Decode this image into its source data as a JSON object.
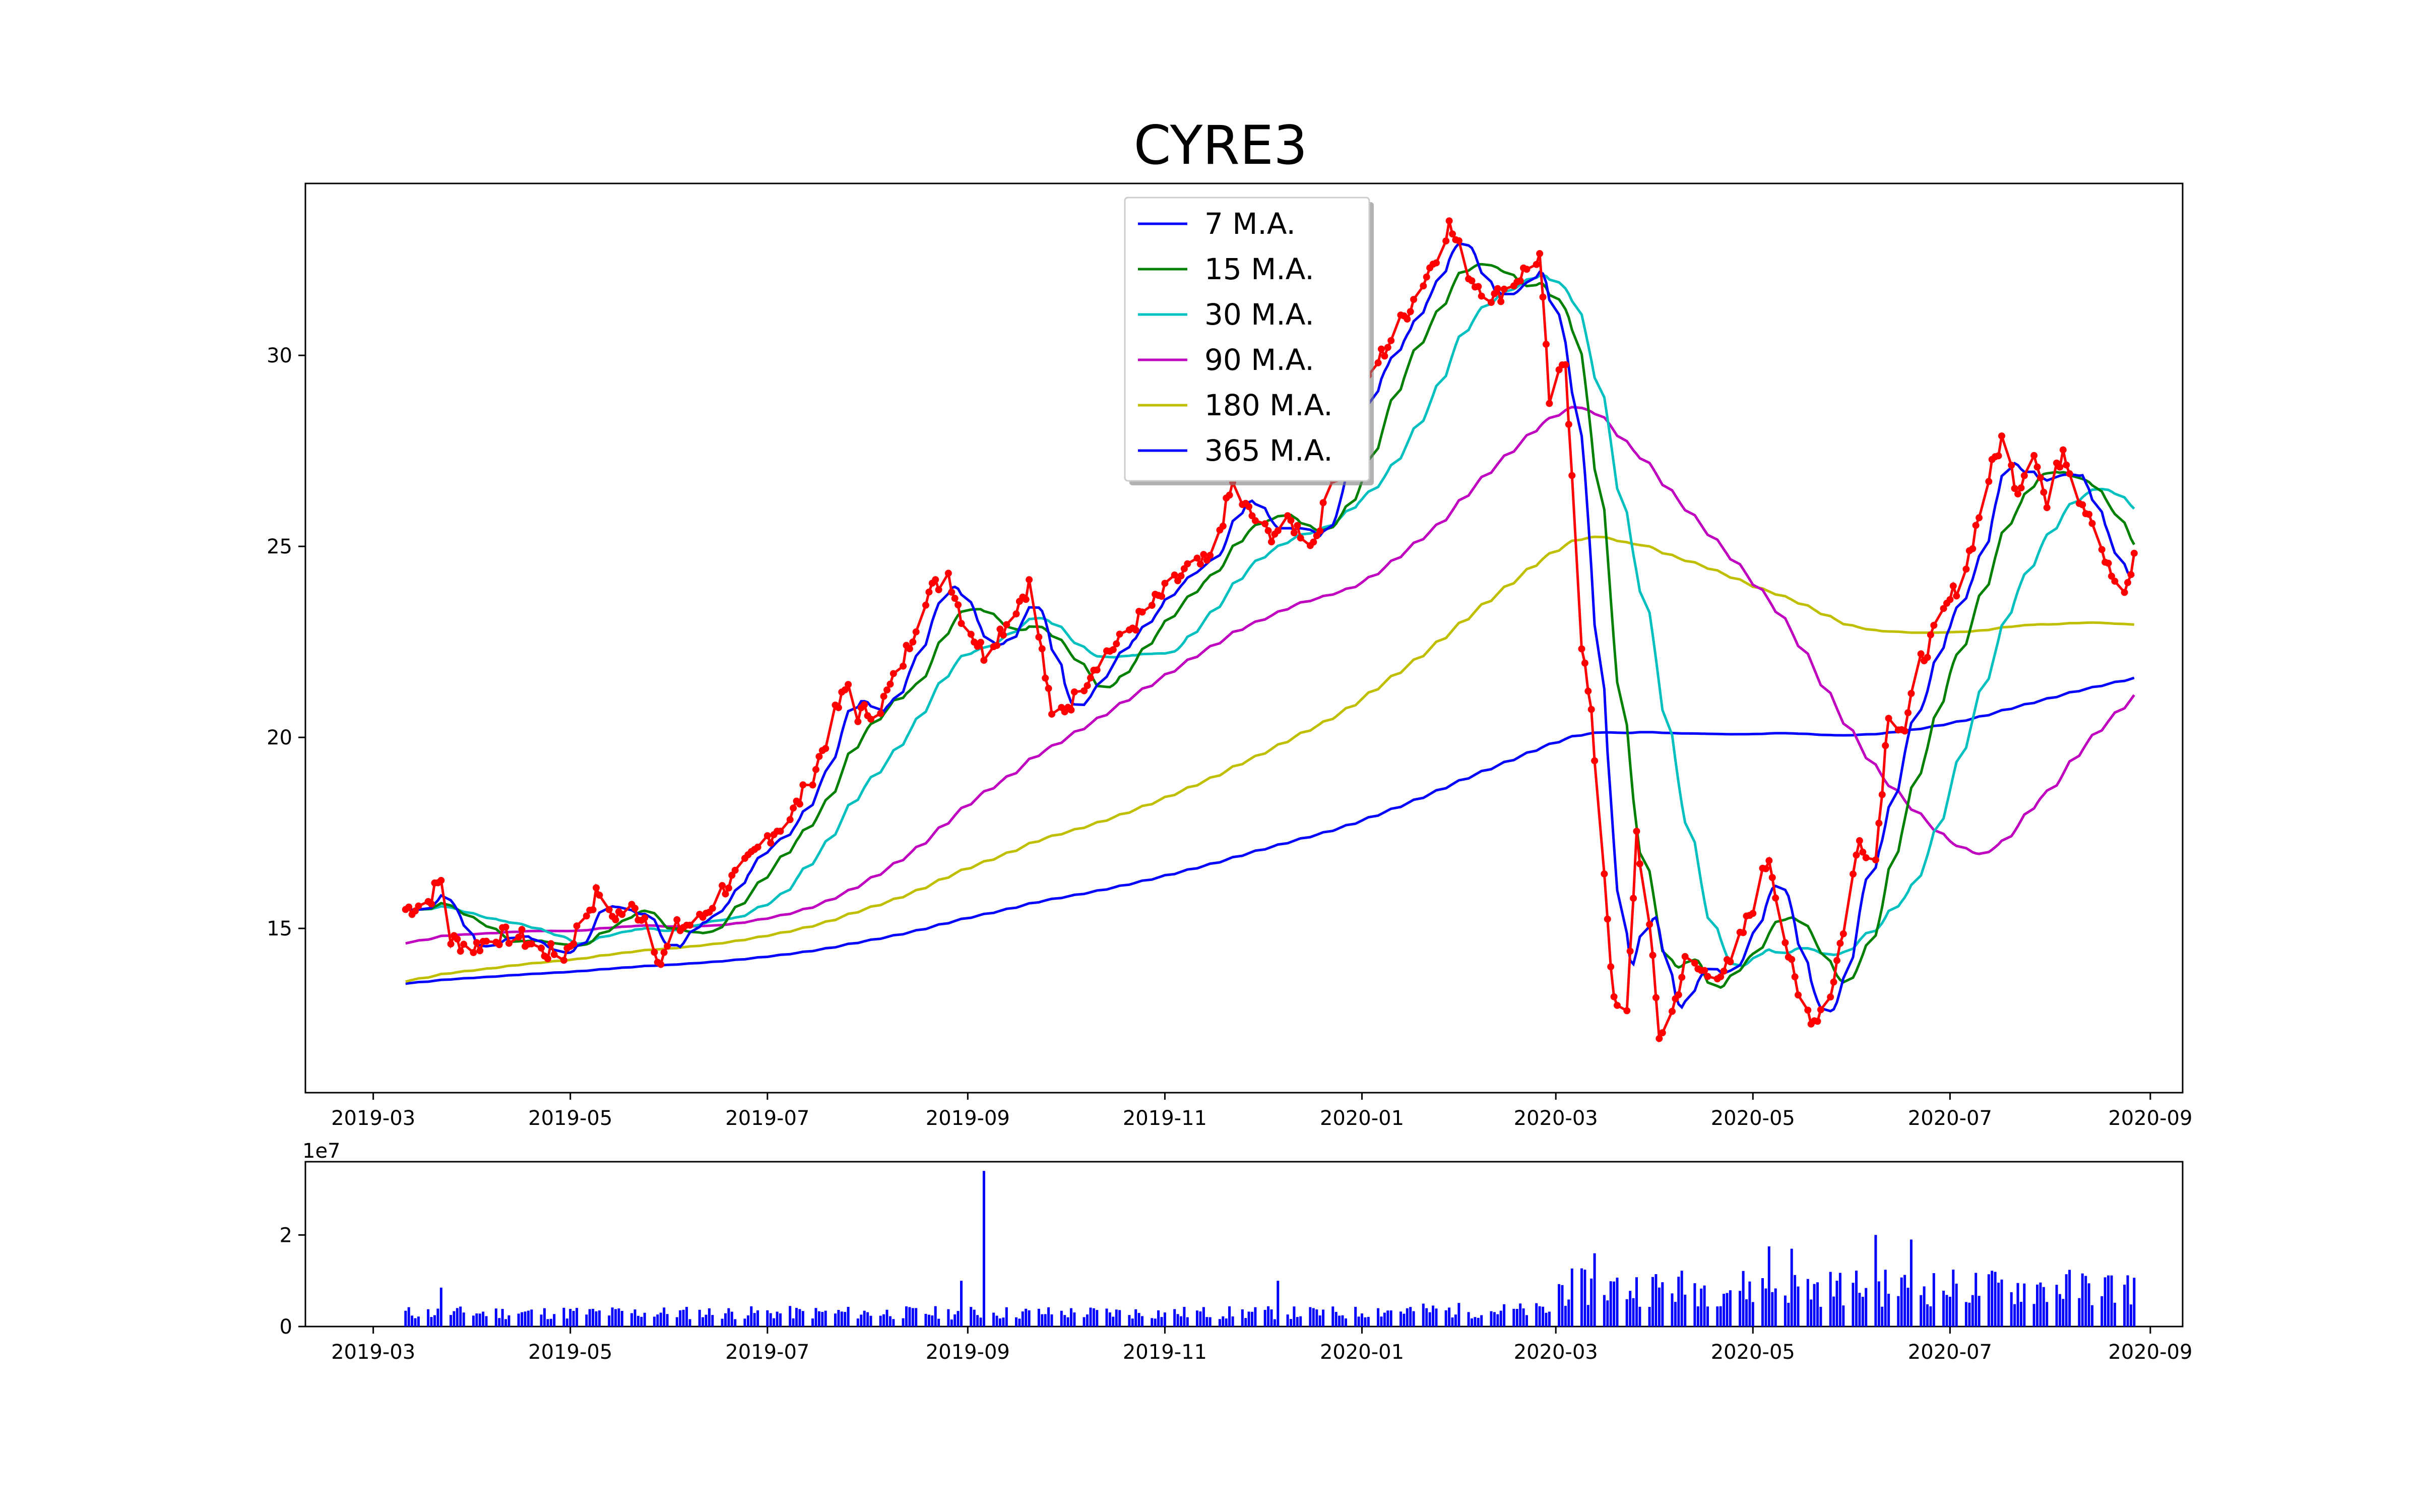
{
  "chart_data": [
    {
      "type": "line",
      "title": "CYRE3",
      "xlabel": "",
      "ylabel": "",
      "x_ticks": [
        "2019-03",
        "2019-05",
        "2019-07",
        "2019-09",
        "2019-11",
        "2020-01",
        "2020-03",
        "2020-05",
        "2020-07",
        "2020-09"
      ],
      "y_ticks": [
        15,
        20,
        25,
        30
      ],
      "ylim": [
        10.7,
        34.5
      ],
      "xlim": [
        "2019-02-08",
        "2020-09-11"
      ],
      "grid": false,
      "legend_position": "top-center",
      "price_color": "#ff0000",
      "anchor_date": "2019-03-11",
      "price_series_approx": [
        [
          "2019-03-11",
          15.5
        ],
        [
          "2019-03-18",
          15.7
        ],
        [
          "2019-03-22",
          16.3
        ],
        [
          "2019-03-25",
          14.7
        ],
        [
          "2019-04-01",
          14.5
        ],
        [
          "2019-04-08",
          14.8
        ],
        [
          "2019-04-15",
          14.8
        ],
        [
          "2019-04-22",
          14.4
        ],
        [
          "2019-04-29",
          14.3
        ],
        [
          "2019-05-06",
          15.4
        ],
        [
          "2019-05-10",
          16.0
        ],
        [
          "2019-05-13",
          15.3
        ],
        [
          "2019-05-20",
          15.5
        ],
        [
          "2019-05-24",
          15.3
        ],
        [
          "2019-05-29",
          14.1
        ],
        [
          "2019-06-03",
          15.0
        ],
        [
          "2019-06-10",
          15.2
        ],
        [
          "2019-06-17",
          16.0
        ],
        [
          "2019-06-24",
          16.6
        ],
        [
          "2019-07-01",
          17.4
        ],
        [
          "2019-07-08",
          17.9
        ],
        [
          "2019-07-15",
          19.0
        ],
        [
          "2019-07-22",
          20.6
        ],
        [
          "2019-07-26",
          21.4
        ],
        [
          "2019-07-29",
          20.6
        ],
        [
          "2019-08-05",
          20.8
        ],
        [
          "2019-08-12",
          22.0
        ],
        [
          "2019-08-19",
          23.7
        ],
        [
          "2019-08-26",
          24.3
        ],
        [
          "2019-08-30",
          23.2
        ],
        [
          "2019-09-06",
          22.2
        ],
        [
          "2019-09-13",
          23.0
        ],
        [
          "2019-09-20",
          24.0
        ],
        [
          "2019-09-24",
          22.2
        ],
        [
          "2019-09-27",
          20.5
        ],
        [
          "2019-10-04",
          21.0
        ],
        [
          "2019-10-11",
          22.0
        ],
        [
          "2019-10-18",
          22.5
        ],
        [
          "2019-10-25",
          23.2
        ],
        [
          "2019-11-01",
          23.8
        ],
        [
          "2019-11-08",
          24.4
        ],
        [
          "2019-11-15",
          24.6
        ],
        [
          "2019-11-22",
          26.6
        ],
        [
          "2019-11-26",
          26.0
        ],
        [
          "2019-12-03",
          25.3
        ],
        [
          "2019-12-10",
          25.6
        ],
        [
          "2019-12-17",
          25.1
        ],
        [
          "2019-12-24",
          27.0
        ],
        [
          "2019-12-31",
          29.0
        ],
        [
          "2020-01-07",
          30.0
        ],
        [
          "2020-01-14",
          31.0
        ],
        [
          "2020-01-21",
          32.1
        ],
        [
          "2020-01-28",
          33.4
        ],
        [
          "2020-02-04",
          32.0
        ],
        [
          "2020-02-11",
          31.5
        ],
        [
          "2020-02-18",
          32.0
        ],
        [
          "2020-02-25",
          32.6
        ],
        [
          "2020-02-28",
          28.8
        ],
        [
          "2020-03-04",
          29.8
        ],
        [
          "2020-03-06",
          27.0
        ],
        [
          "2020-03-09",
          22.5
        ],
        [
          "2020-03-12",
          20.5
        ],
        [
          "2020-03-16",
          16.5
        ],
        [
          "2020-03-19",
          13.0
        ],
        [
          "2020-03-23",
          12.7
        ],
        [
          "2020-03-26",
          17.5
        ],
        [
          "2020-03-30",
          15.0
        ],
        [
          "2020-04-02",
          12.2
        ],
        [
          "2020-04-06",
          12.8
        ],
        [
          "2020-04-10",
          14.1
        ],
        [
          "2020-04-17",
          13.8
        ],
        [
          "2020-04-24",
          14.0
        ],
        [
          "2020-05-01",
          15.6
        ],
        [
          "2020-05-06",
          16.9
        ],
        [
          "2020-05-11",
          14.7
        ],
        [
          "2020-05-15",
          13.2
        ],
        [
          "2020-05-20",
          12.6
        ],
        [
          "2020-05-25",
          13.3
        ],
        [
          "2020-05-29",
          15.0
        ],
        [
          "2020-06-03",
          17.3
        ],
        [
          "2020-06-08",
          16.8
        ],
        [
          "2020-06-12",
          20.7
        ],
        [
          "2020-06-17",
          20.2
        ],
        [
          "2020-06-22",
          22.0
        ],
        [
          "2020-06-29",
          23.2
        ],
        [
          "2020-07-06",
          24.5
        ],
        [
          "2020-07-13",
          26.8
        ],
        [
          "2020-07-17",
          27.8
        ],
        [
          "2020-07-22",
          26.5
        ],
        [
          "2020-07-27",
          27.6
        ],
        [
          "2020-07-31",
          26.0
        ],
        [
          "2020-08-05",
          27.6
        ],
        [
          "2020-08-10",
          26.3
        ],
        [
          "2020-08-14",
          25.8
        ],
        [
          "2020-08-19",
          24.4
        ],
        [
          "2020-08-24",
          23.6
        ],
        [
          "2020-08-27",
          24.7
        ]
      ],
      "series": [
        {
          "name": "7 M.A.",
          "color": "#0000ff",
          "lag_days": 5
        },
        {
          "name": "15 M.A.",
          "color": "#008000",
          "lag_days": 11
        },
        {
          "name": "30 M.A.",
          "color": "#00bfbf",
          "lag_days": 22
        },
        {
          "name": "90 M.A.",
          "color": "#bf00bf",
          "lag_days": 64
        },
        {
          "name": "180 M.A.",
          "color": "#bfbf00",
          "lag_days": 128
        },
        {
          "name": "365 M.A.",
          "color": "#0000ff",
          "lag_days": 255
        }
      ],
      "ma_start_values": {
        "90 M.A.": 13.7,
        "180 M.A.": 11.7,
        "365 M.A.": 11.6
      }
    },
    {
      "type": "bar",
      "title": "",
      "xlabel": "",
      "ylabel": "",
      "exponent_label": "1e7",
      "x_ticks": [
        "2019-03",
        "2019-05",
        "2019-07",
        "2019-09",
        "2019-11",
        "2020-01",
        "2020-03",
        "2020-05",
        "2020-07",
        "2020-09"
      ],
      "y_ticks": [
        "0",
        "2"
      ],
      "ylim": [
        0,
        3.6
      ],
      "bar_color": "#0000ff",
      "volume_approx": {
        "base_2019": 0.3,
        "base_2020_pre_covid": 0.35,
        "base_covid": 0.85,
        "spikes": [
          [
            "2019-09-06",
            3.4
          ],
          [
            "2019-08-30",
            1.0
          ],
          [
            "2019-03-22",
            0.85
          ],
          [
            "2019-12-06",
            1.0
          ],
          [
            "2020-06-08",
            2.0
          ],
          [
            "2020-06-19",
            1.9
          ],
          [
            "2020-05-06",
            1.75
          ],
          [
            "2020-05-13",
            1.7
          ],
          [
            "2020-03-13",
            1.6
          ]
        ]
      }
    }
  ]
}
